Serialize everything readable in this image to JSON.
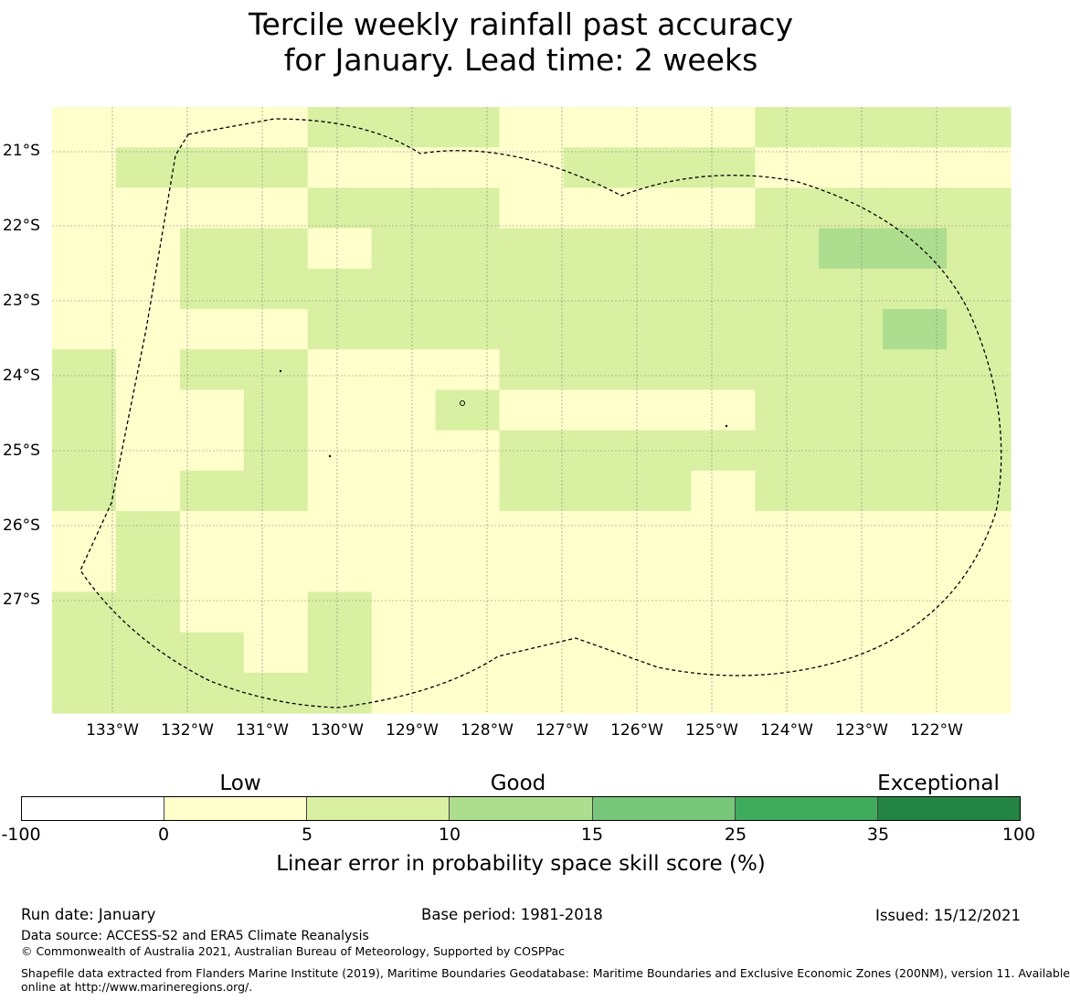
{
  "title": {
    "line1": "Tercile weekly rainfall past accuracy",
    "line2": "for January. Lead time: 2 weeks"
  },
  "map": {
    "lat_labels": [
      "21°S",
      "22°S",
      "23°S",
      "24°S",
      "25°S",
      "26°S",
      "27°S"
    ],
    "lon_labels": [
      "133°W",
      "132°W",
      "131°W",
      "130°W",
      "129°W",
      "128°W",
      "127°W",
      "126°W",
      "125°W",
      "124°W",
      "123°W",
      "122°W"
    ],
    "grid_columns": 15,
    "grid_rows": 15,
    "skill_classes": [
      "111122211112222",
      "122211112221111",
      "111122211112222",
      "112212222222332",
      "112222222222222",
      "111122222222232",
      "212211122222222",
      "211211211112222",
      "211211122222222",
      "212211122212222",
      "121111111111111",
      "121111111111111",
      "221121111111111",
      "222121111111111",
      "222221111111111"
    ],
    "skill_rows_note": "rows listed top to bottom; digits are class indices into colorbar.colors"
  },
  "colorbar": {
    "category_labels": {
      "low": "Low",
      "good": "Good",
      "exceptional": "Exceptional"
    },
    "ticks": [
      "-100",
      "0",
      "5",
      "10",
      "15",
      "25",
      "35",
      "100"
    ],
    "colors": [
      "#ffffff",
      "#ffffcc",
      "#d9f0a3",
      "#addd8e",
      "#78c679",
      "#41ab5d",
      "#238443"
    ],
    "label": "Linear error in probability space skill score (%)"
  },
  "footer": {
    "run_date": "Run date: January",
    "base_period": "Base period: 1981-2018",
    "issued": "Issued: 15/12/2021",
    "data_source": "Data source: ACCESS-S2 and ERA5 Climate Reanalysis",
    "copyright": "© Commonwealth of Australia 2021, Australian Bureau of Meteorology, Supported by COSPPac",
    "shapefile_line1": "Shapefile data extracted from Flanders Marine Institute (2019), Maritime Boundaries Geodatabase: Maritime Boundaries and Exclusive Economic Zones (200NM), version 11. Available",
    "shapefile_line2": "online at http://www.marineregions.org/."
  }
}
